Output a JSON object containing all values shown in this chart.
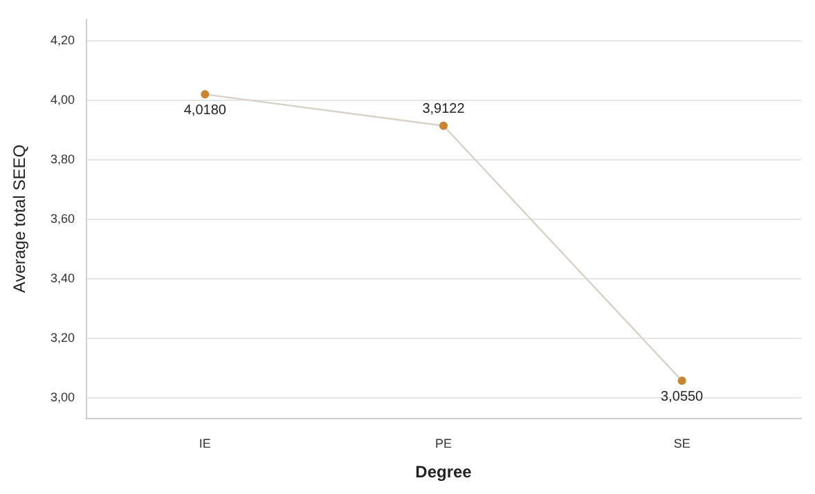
{
  "chart_data": {
    "type": "line",
    "xlabel": "Degree",
    "ylabel": "Average total SEEQ",
    "categories": [
      "IE",
      "PE",
      "SE"
    ],
    "series": [
      {
        "color": "#d8d2c6",
        "colors": [
          "#c8842e",
          "#c8842e",
          "#c8842e"
        ],
        "values": [
          4.018,
          3.9122,
          3.055
        ],
        "value_labels": [
          "4,0180",
          "3,9122",
          "3,0550"
        ]
      }
    ],
    "ylim": [
      2.93,
      4.27
    ],
    "yticks": [
      {
        "value": 3.0,
        "label": "3,00"
      },
      {
        "value": 3.2,
        "label": "3,20"
      },
      {
        "value": 3.4,
        "label": "3,40"
      },
      {
        "value": 3.6,
        "label": "3,60"
      },
      {
        "value": 3.8,
        "label": "3,80"
      },
      {
        "value": 4.0,
        "label": "4,00"
      },
      {
        "value": 4.2,
        "label": "4,20"
      }
    ],
    "grid": "y",
    "marker": "circle",
    "line_style": "solid"
  }
}
